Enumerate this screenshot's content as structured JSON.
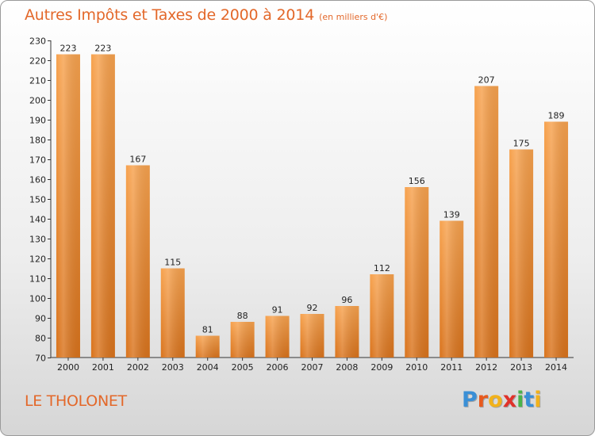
{
  "header": {
    "title": "Autres Impôts et Taxes de 2000 à 2014",
    "unit": "(en milliers d'€)"
  },
  "footer": {
    "commune": "LE THOLONET",
    "logo_letters": [
      {
        "ch": "P",
        "color": "#3a8fd6"
      },
      {
        "ch": "r",
        "color": "#e85a1e"
      },
      {
        "ch": "o",
        "color": "#f2b21b"
      },
      {
        "ch": "x",
        "color": "#e0322a"
      },
      {
        "ch": "i",
        "color": "#4ab34a"
      },
      {
        "ch": "t",
        "color": "#3a8fd6"
      },
      {
        "ch": "i",
        "color": "#f2b21b"
      }
    ]
  },
  "colors": {
    "title": "#e3682a",
    "bar_light": "#f7a24e",
    "bar_dark": "#d9731c"
  },
  "chart_data": {
    "type": "bar",
    "title": "Autres Impôts et Taxes de 2000 à 2014",
    "subtitle": "(en milliers d'€)",
    "categories": [
      "2000",
      "2001",
      "2002",
      "2003",
      "2004",
      "2005",
      "2006",
      "2007",
      "2008",
      "2009",
      "2010",
      "2011",
      "2012",
      "2013",
      "2014"
    ],
    "values": [
      223,
      223,
      167,
      115,
      81,
      88,
      91,
      92,
      96,
      112,
      156,
      139,
      207,
      175,
      189
    ],
    "ylim": [
      70,
      230
    ],
    "yticks": [
      70,
      80,
      90,
      100,
      110,
      120,
      130,
      140,
      150,
      160,
      170,
      180,
      190,
      200,
      210,
      220,
      230
    ],
    "grid": false,
    "data_labels": true
  }
}
